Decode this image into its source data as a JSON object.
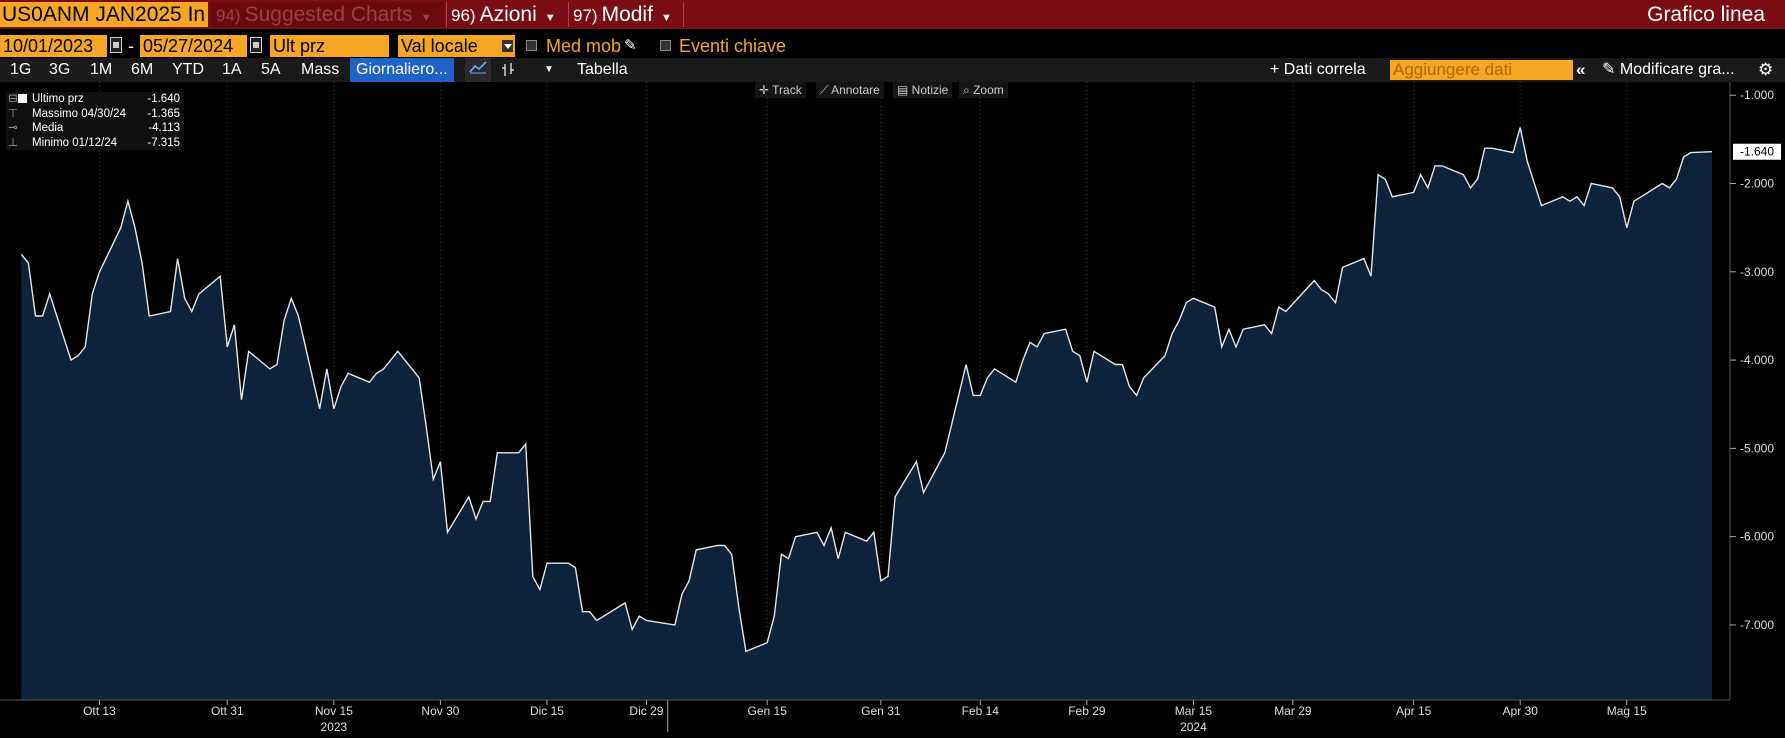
{
  "topbar": {
    "ticker": "US0ANM JAN2025 In",
    "suggested": {
      "num": "94)",
      "label": "Suggested Charts"
    },
    "azioni": {
      "num": "96)",
      "label": "Azioni"
    },
    "modif": {
      "num": "97)",
      "label": "Modif"
    },
    "title": "Grafico linea"
  },
  "controls": {
    "start_date": "10/01/2023",
    "end_date": "05/27/2024",
    "price_field": "Ult prz",
    "currency": "Val locale",
    "moving_avg": "Med mob",
    "key_events": "Eventi chiave"
  },
  "periods": [
    "1G",
    "3G",
    "1M",
    "6M",
    "YTD",
    "1A",
    "5A",
    "Mass"
  ],
  "frequency": "Giornaliero...",
  "table_label": "Tabella",
  "correl_label": "+ Dati correla",
  "add_data_placeholder": "Aggiungere dati",
  "modify_label": "Modificare gra...",
  "chart_tools": [
    "Track",
    "Annotare",
    "Notizie",
    "Zoom"
  ],
  "legend": [
    {
      "label": "Ultimo prz",
      "value": "-1.640"
    },
    {
      "label": "Massimo 04/30/24",
      "value": "-1.365"
    },
    {
      "label": "Media",
      "value": "-4.113"
    },
    {
      "label": "Minimo 01/12/24",
      "value": "-7.315"
    }
  ],
  "colors": {
    "accent": "#f5a623",
    "topbar": "#7a0d14",
    "area": "#0e2239",
    "line": "#e6e6e6",
    "selected": "#1e64c8"
  },
  "chart_data": {
    "type": "area",
    "ylim": [
      -7.85,
      -0.85
    ],
    "yticks": [
      -1.0,
      -2.0,
      -3.0,
      -4.0,
      -5.0,
      -6.0,
      -7.0
    ],
    "ytick_labels": [
      "-1.000",
      "-2.000",
      "-3.000",
      "-4.000",
      "-5.000",
      "-6.000",
      "-7.000"
    ],
    "last_value_label": "-1.640",
    "x_ticks": [
      {
        "date": "2023-10-13",
        "label": "Ott 13"
      },
      {
        "date": "2023-10-31",
        "label": "Ott 31"
      },
      {
        "date": "2023-11-15",
        "label": "Nov 15"
      },
      {
        "date": "2023-11-30",
        "label": "Nov 30"
      },
      {
        "date": "2023-12-15",
        "label": "Dic 15"
      },
      {
        "date": "2023-12-29",
        "label": "Dic 29"
      },
      {
        "date": "2024-01-15",
        "label": "Gen 15"
      },
      {
        "date": "2024-01-31",
        "label": "Gen 31"
      },
      {
        "date": "2024-02-14",
        "label": "Feb 14"
      },
      {
        "date": "2024-02-29",
        "label": "Feb 29"
      },
      {
        "date": "2024-03-15",
        "label": "Mar 15"
      },
      {
        "date": "2024-03-29",
        "label": "Mar 29"
      },
      {
        "date": "2024-04-15",
        "label": "Apr 15"
      },
      {
        "date": "2024-04-30",
        "label": "Apr 30"
      },
      {
        "date": "2024-05-15",
        "label": "Mag 15"
      }
    ],
    "year_labels": [
      {
        "date": "2023-11-15",
        "label": "2023"
      },
      {
        "date": "2024-03-15",
        "label": "2024"
      }
    ],
    "series": [
      {
        "name": "Ultimo prz",
        "points": [
          [
            "2023-10-02",
            -2.8
          ],
          [
            "2023-10-03",
            -2.9
          ],
          [
            "2023-10-04",
            -3.5
          ],
          [
            "2023-10-05",
            -3.5
          ],
          [
            "2023-10-06",
            -3.25
          ],
          [
            "2023-10-09",
            -4.0
          ],
          [
            "2023-10-10",
            -3.95
          ],
          [
            "2023-10-11",
            -3.85
          ],
          [
            "2023-10-12",
            -3.25
          ],
          [
            "2023-10-13",
            -3.0
          ],
          [
            "2023-10-16",
            -2.5
          ],
          [
            "2023-10-17",
            -2.2
          ],
          [
            "2023-10-18",
            -2.5
          ],
          [
            "2023-10-19",
            -2.9
          ],
          [
            "2023-10-20",
            -3.5
          ],
          [
            "2023-10-23",
            -3.45
          ],
          [
            "2023-10-24",
            -2.85
          ],
          [
            "2023-10-25",
            -3.3
          ],
          [
            "2023-10-26",
            -3.45
          ],
          [
            "2023-10-27",
            -3.25
          ],
          [
            "2023-10-30",
            -3.05
          ],
          [
            "2023-10-31",
            -3.85
          ],
          [
            "2023-11-01",
            -3.6
          ],
          [
            "2023-11-02",
            -4.45
          ],
          [
            "2023-11-03",
            -3.9
          ],
          [
            "2023-11-06",
            -4.1
          ],
          [
            "2023-11-07",
            -4.05
          ],
          [
            "2023-11-08",
            -3.55
          ],
          [
            "2023-11-09",
            -3.3
          ],
          [
            "2023-11-10",
            -3.5
          ],
          [
            "2023-11-13",
            -4.55
          ],
          [
            "2023-11-14",
            -4.1
          ],
          [
            "2023-11-15",
            -4.55
          ],
          [
            "2023-11-16",
            -4.3
          ],
          [
            "2023-11-17",
            -4.15
          ],
          [
            "2023-11-20",
            -4.25
          ],
          [
            "2023-11-21",
            -4.15
          ],
          [
            "2023-11-22",
            -4.1
          ],
          [
            "2023-11-24",
            -3.9
          ],
          [
            "2023-11-27",
            -4.2
          ],
          [
            "2023-11-28",
            -4.75
          ],
          [
            "2023-11-29",
            -5.35
          ],
          [
            "2023-11-30",
            -5.15
          ],
          [
            "2023-12-01",
            -5.95
          ],
          [
            "2023-12-04",
            -5.55
          ],
          [
            "2023-12-05",
            -5.8
          ],
          [
            "2023-12-06",
            -5.6
          ],
          [
            "2023-12-07",
            -5.6
          ],
          [
            "2023-12-08",
            -5.05
          ],
          [
            "2023-12-11",
            -5.05
          ],
          [
            "2023-12-12",
            -4.95
          ],
          [
            "2023-12-13",
            -6.45
          ],
          [
            "2023-12-14",
            -6.6
          ],
          [
            "2023-12-15",
            -6.3
          ],
          [
            "2023-12-18",
            -6.3
          ],
          [
            "2023-12-19",
            -6.35
          ],
          [
            "2023-12-20",
            -6.85
          ],
          [
            "2023-12-21",
            -6.85
          ],
          [
            "2023-12-22",
            -6.95
          ],
          [
            "2023-12-26",
            -6.75
          ],
          [
            "2023-12-27",
            -7.05
          ],
          [
            "2023-12-28",
            -6.9
          ],
          [
            "2023-12-29",
            -6.95
          ],
          [
            "2024-01-02",
            -7.0
          ],
          [
            "2024-01-03",
            -6.65
          ],
          [
            "2024-01-04",
            -6.5
          ],
          [
            "2024-01-05",
            -6.15
          ],
          [
            "2024-01-08",
            -6.1
          ],
          [
            "2024-01-09",
            -6.1
          ],
          [
            "2024-01-10",
            -6.2
          ],
          [
            "2024-01-11",
            -6.8
          ],
          [
            "2024-01-12",
            -7.3
          ],
          [
            "2024-01-15",
            -7.2
          ],
          [
            "2024-01-16",
            -6.9
          ],
          [
            "2024-01-17",
            -6.2
          ],
          [
            "2024-01-18",
            -6.25
          ],
          [
            "2024-01-19",
            -6.0
          ],
          [
            "2024-01-22",
            -5.95
          ],
          [
            "2024-01-23",
            -6.1
          ],
          [
            "2024-01-24",
            -5.9
          ],
          [
            "2024-01-25",
            -6.25
          ],
          [
            "2024-01-26",
            -5.95
          ],
          [
            "2024-01-29",
            -6.05
          ],
          [
            "2024-01-30",
            -5.95
          ],
          [
            "2024-01-31",
            -6.5
          ],
          [
            "2024-02-01",
            -6.45
          ],
          [
            "2024-02-02",
            -5.55
          ],
          [
            "2024-02-05",
            -5.15
          ],
          [
            "2024-02-06",
            -5.5
          ],
          [
            "2024-02-07",
            -5.35
          ],
          [
            "2024-02-08",
            -5.2
          ],
          [
            "2024-02-09",
            -5.05
          ],
          [
            "2024-02-12",
            -4.05
          ],
          [
            "2024-02-13",
            -4.4
          ],
          [
            "2024-02-14",
            -4.4
          ],
          [
            "2024-02-15",
            -4.2
          ],
          [
            "2024-02-16",
            -4.1
          ],
          [
            "2024-02-19",
            -4.25
          ],
          [
            "2024-02-20",
            -4.0
          ],
          [
            "2024-02-21",
            -3.8
          ],
          [
            "2024-02-22",
            -3.85
          ],
          [
            "2024-02-23",
            -3.7
          ],
          [
            "2024-02-26",
            -3.65
          ],
          [
            "2024-02-27",
            -3.9
          ],
          [
            "2024-02-28",
            -3.95
          ],
          [
            "2024-02-29",
            -4.25
          ],
          [
            "2024-03-01",
            -3.9
          ],
          [
            "2024-03-04",
            -4.05
          ],
          [
            "2024-03-05",
            -4.05
          ],
          [
            "2024-03-06",
            -4.3
          ],
          [
            "2024-03-07",
            -4.4
          ],
          [
            "2024-03-08",
            -4.2
          ],
          [
            "2024-03-11",
            -3.95
          ],
          [
            "2024-03-12",
            -3.7
          ],
          [
            "2024-03-13",
            -3.55
          ],
          [
            "2024-03-14",
            -3.35
          ],
          [
            "2024-03-15",
            -3.3
          ],
          [
            "2024-03-18",
            -3.4
          ],
          [
            "2024-03-19",
            -3.85
          ],
          [
            "2024-03-20",
            -3.65
          ],
          [
            "2024-03-21",
            -3.85
          ],
          [
            "2024-03-22",
            -3.65
          ],
          [
            "2024-03-25",
            -3.6
          ],
          [
            "2024-03-26",
            -3.7
          ],
          [
            "2024-03-27",
            -3.4
          ],
          [
            "2024-03-28",
            -3.45
          ],
          [
            "2024-04-01",
            -3.1
          ],
          [
            "2024-04-02",
            -3.2
          ],
          [
            "2024-04-03",
            -3.25
          ],
          [
            "2024-04-04",
            -3.35
          ],
          [
            "2024-04-05",
            -2.95
          ],
          [
            "2024-04-08",
            -2.85
          ],
          [
            "2024-04-09",
            -3.05
          ],
          [
            "2024-04-10",
            -1.9
          ],
          [
            "2024-04-11",
            -1.95
          ],
          [
            "2024-04-12",
            -2.15
          ],
          [
            "2024-04-15",
            -2.1
          ],
          [
            "2024-04-16",
            -1.9
          ],
          [
            "2024-04-17",
            -2.05
          ],
          [
            "2024-04-18",
            -1.8
          ],
          [
            "2024-04-19",
            -1.8
          ],
          [
            "2024-04-22",
            -1.9
          ],
          [
            "2024-04-23",
            -2.05
          ],
          [
            "2024-04-24",
            -1.95
          ],
          [
            "2024-04-25",
            -1.6
          ],
          [
            "2024-04-26",
            -1.6
          ],
          [
            "2024-04-29",
            -1.65
          ],
          [
            "2024-04-30",
            -1.365
          ],
          [
            "2024-05-01",
            -1.75
          ],
          [
            "2024-05-02",
            -2.0
          ],
          [
            "2024-05-03",
            -2.25
          ],
          [
            "2024-05-06",
            -2.15
          ],
          [
            "2024-05-07",
            -2.2
          ],
          [
            "2024-05-08",
            -2.15
          ],
          [
            "2024-05-09",
            -2.25
          ],
          [
            "2024-05-10",
            -2.0
          ],
          [
            "2024-05-13",
            -2.05
          ],
          [
            "2024-05-14",
            -2.15
          ],
          [
            "2024-05-15",
            -2.5
          ],
          [
            "2024-05-16",
            -2.2
          ],
          [
            "2024-05-17",
            -2.15
          ],
          [
            "2024-05-20",
            -2.0
          ],
          [
            "2024-05-21",
            -2.05
          ],
          [
            "2024-05-22",
            -1.95
          ],
          [
            "2024-05-23",
            -1.7
          ],
          [
            "2024-05-24",
            -1.65
          ],
          [
            "2024-05-27",
            -1.64
          ]
        ]
      }
    ]
  }
}
